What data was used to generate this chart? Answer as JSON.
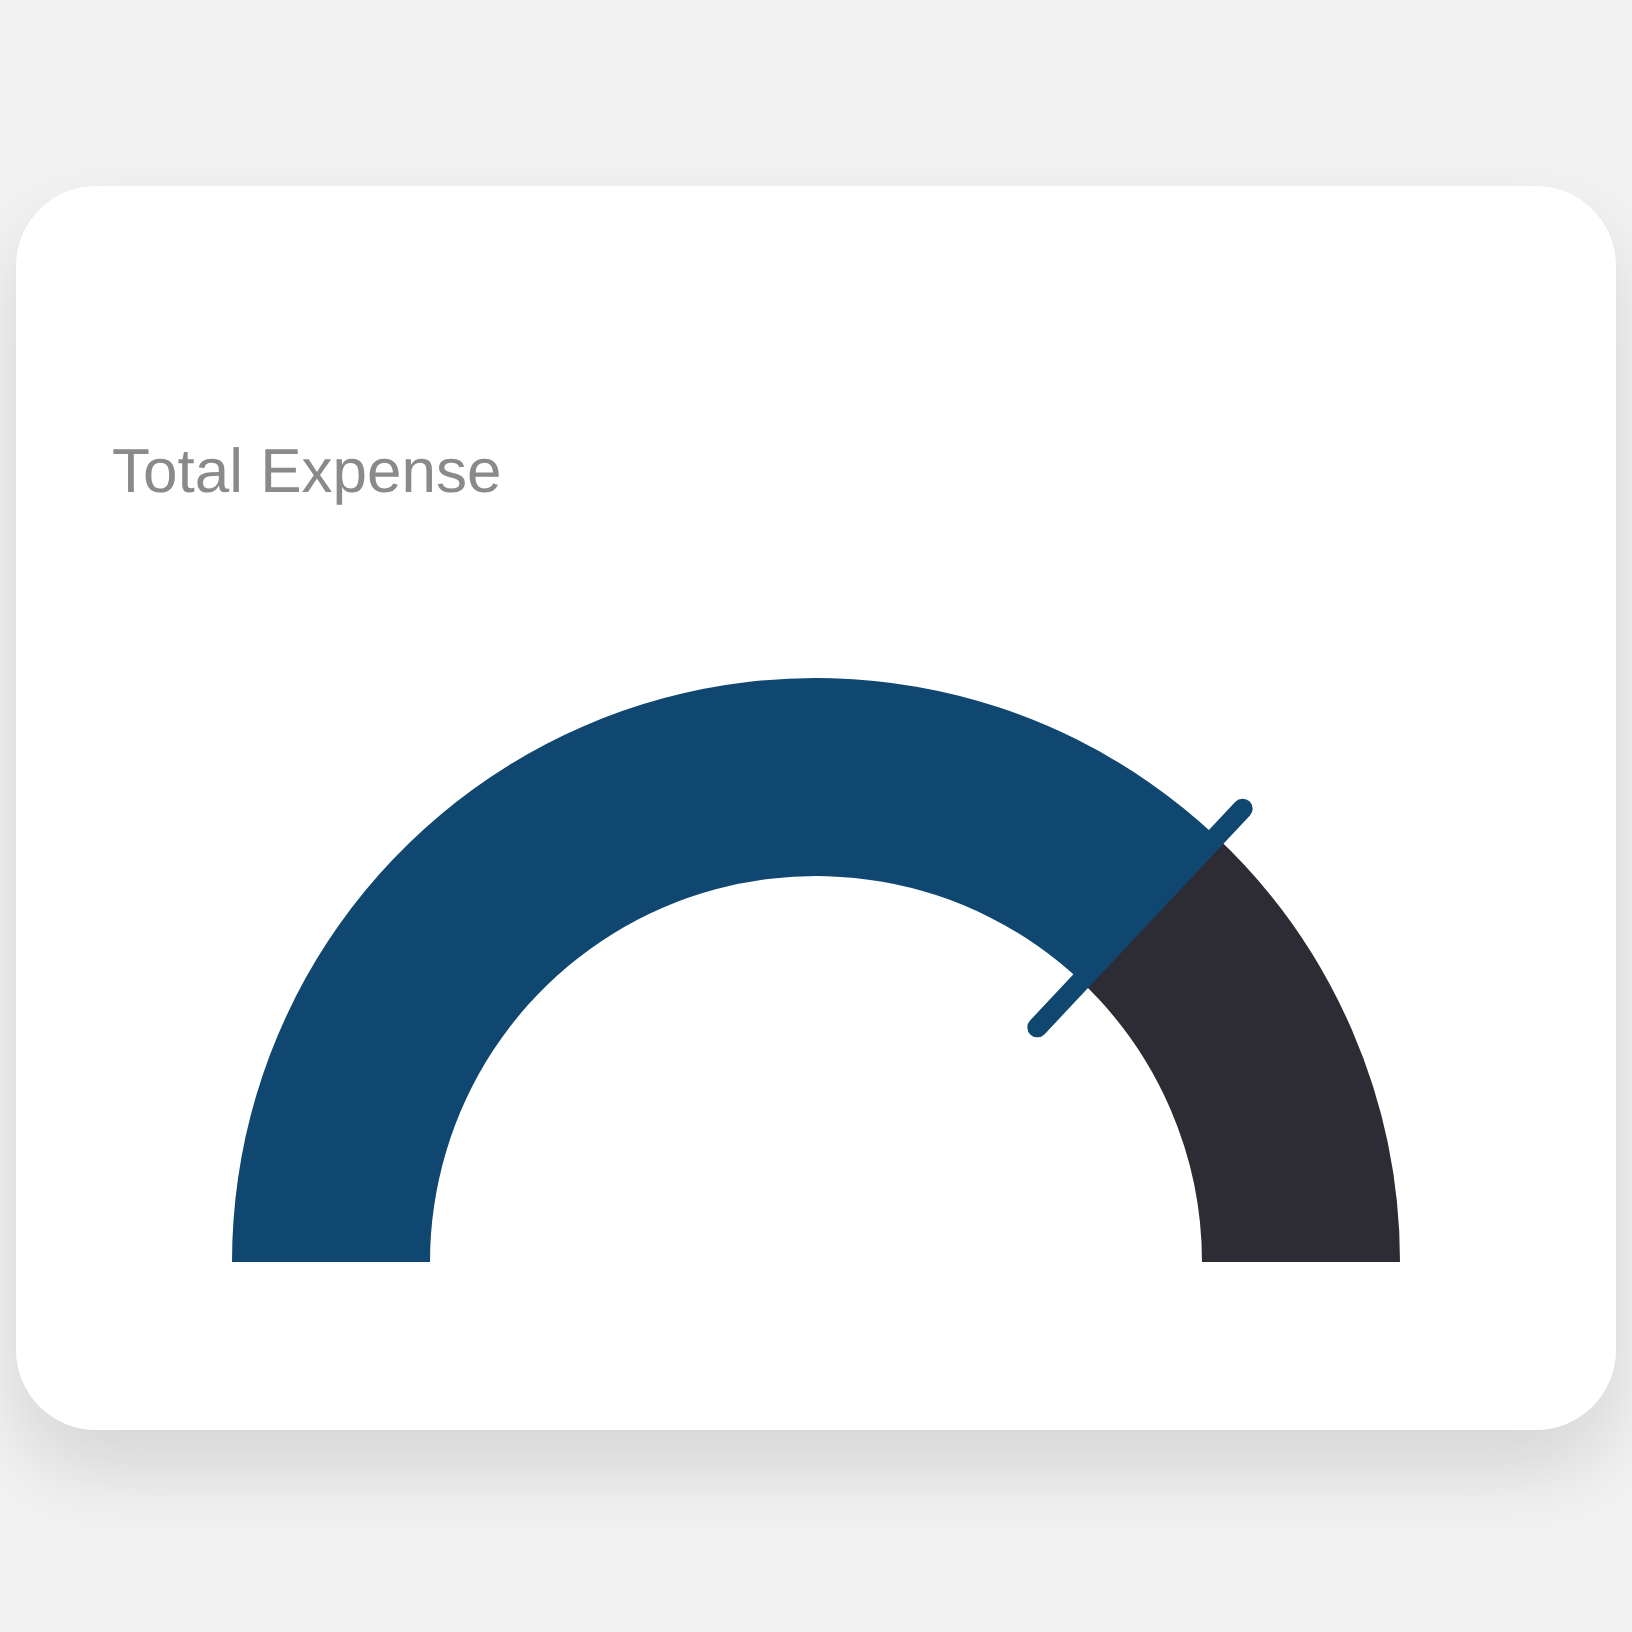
{
  "chart_data": {
    "type": "donut",
    "title": "Total Expense",
    "categories": [
      null,
      null
    ],
    "values": [
      74,
      26
    ],
    "colors": [
      "#0f4770",
      "#2d2c35"
    ],
    "legend": false
  }
}
